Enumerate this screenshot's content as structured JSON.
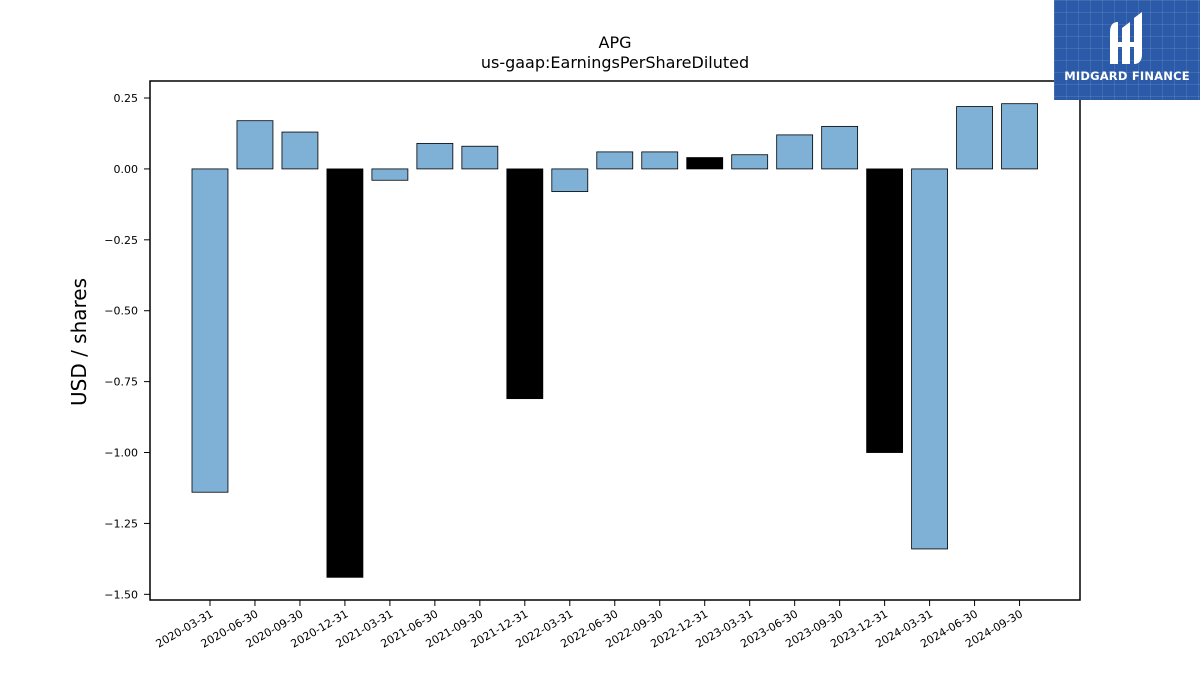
{
  "logo": {
    "text": "MIDGARD FINANCE",
    "color": "#2b5aa8"
  },
  "chart_data": {
    "type": "bar",
    "title": "APG",
    "subtitle": "us-gaap:EarningsPerShareDiluted",
    "xlabel": "",
    "ylabel": "USD / shares",
    "ylim": [
      -1.52,
      0.31
    ],
    "yticks": [
      0.25,
      0.0,
      -0.25,
      -0.5,
      -0.75,
      -1.0,
      -1.25,
      -1.5
    ],
    "ytick_labels": [
      "0.25",
      "0.00",
      "−0.25",
      "−0.50",
      "−0.75",
      "−1.00",
      "−1.25",
      "−1.50"
    ],
    "grid": false,
    "colors": {
      "quarter": "#7fb0d5",
      "annual": "#000000",
      "edge": "#000000"
    },
    "categories": [
      "2020-03-31",
      "2020-06-30",
      "2020-09-30",
      "2020-12-31",
      "2021-03-31",
      "2021-06-30",
      "2021-09-30",
      "2021-12-31",
      "2022-03-31",
      "2022-06-30",
      "2022-09-30",
      "2022-12-31",
      "2023-03-31",
      "2023-06-30",
      "2023-09-30",
      "2023-12-31",
      "2024-03-31",
      "2024-06-30",
      "2024-09-30"
    ],
    "values": [
      -1.14,
      0.17,
      0.13,
      -1.44,
      -0.04,
      0.09,
      0.08,
      -0.81,
      -0.08,
      0.06,
      0.06,
      0.04,
      0.05,
      0.12,
      0.15,
      -1.0,
      -1.34,
      0.22,
      0.23
    ],
    "annual_flags": [
      false,
      false,
      false,
      true,
      false,
      false,
      false,
      true,
      false,
      false,
      false,
      true,
      false,
      false,
      false,
      true,
      false,
      false,
      false
    ]
  }
}
